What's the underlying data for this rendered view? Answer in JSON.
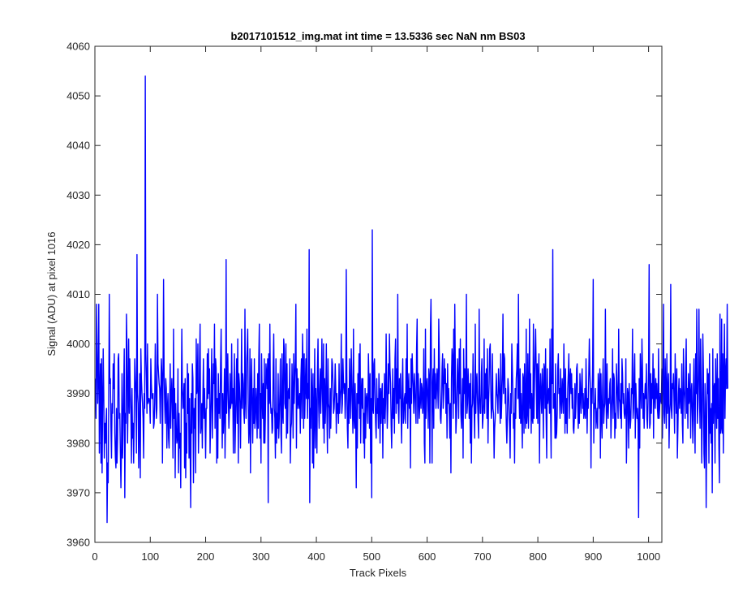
{
  "chart_data": {
    "type": "line",
    "title": "b2017101512_img.mat int time = 13.5336 sec  NaN nm BS03",
    "xlabel": "Track Pixels",
    "ylabel": "Signal (ADU) at pixel 1016",
    "xlim": [
      0,
      1024
    ],
    "ylim": [
      3960,
      4060
    ],
    "xticks": [
      0,
      100,
      200,
      300,
      400,
      500,
      600,
      700,
      800,
      900,
      1000
    ],
    "yticks": [
      3960,
      3970,
      3980,
      3990,
      4000,
      4010,
      4020,
      4030,
      4040,
      4050,
      4060
    ],
    "grid": false,
    "legend": "none",
    "series": [
      {
        "color": "#0000ff",
        "x_start": 1,
        "x_step": 1,
        "values": [
          3993,
          3985,
          4008,
          3998,
          3988,
          3994,
          4008,
          3978,
          3990,
          3996,
          3976,
          3997,
          3974,
          3988,
          3999,
          3990,
          3977,
          3984,
          3980,
          3984,
          3987,
          3964,
          3976,
          3972,
          3989,
          4010,
          3992,
          3993,
          3983,
          3977,
          3988,
          3986,
          3996,
          3991,
          3998,
          3982,
          3977,
          3975,
          3987,
          3976,
          3981,
          3997,
          3998,
          3985,
          3986,
          3978,
          3971,
          3979,
          3994,
          3977,
          3983,
          3991,
          3999,
          3969,
          3986,
          3984,
          4006,
          3999,
          3980,
          3989,
          4001,
          3986,
          3997,
          3990,
          3986,
          3976,
          3991,
          3981,
          3984,
          3976,
          3985,
          3997,
          3993,
          3990,
          3978,
          4018,
          3990,
          3988,
          3975,
          3984,
          3994,
          3973,
          3999,
          3993,
          3990,
          3988,
          3985,
          3977,
          3990,
          3987,
          4054,
          3998,
          3993,
          3986,
          4000,
          3988,
          3989,
          3989,
          3988,
          3984,
          3997,
          3992,
          3989,
          3989,
          3990,
          3983,
          3984,
          3988,
          4000,
          3992,
          3985,
          3987,
          4010,
          3996,
          3994,
          3992,
          3991,
          3984,
          3990,
          3997,
          3994,
          3976,
          3993,
          4013,
          3994,
          3988,
          3984,
          3993,
          3991,
          3979,
          3987,
          3990,
          3981,
          3979,
          3987,
          3996,
          3983,
          3989,
          3993,
          3988,
          3977,
          4003,
          3985,
          3991,
          3973,
          3988,
          3983,
          3980,
          3981,
          3995,
          3974,
          3986,
          3979,
          3982,
          3971,
          3988,
          4003,
          3991,
          3987,
          3989,
          3992,
          3975,
          3993,
          3973,
          3984,
          3978,
          3996,
          3986,
          3994,
          3977,
          3989,
          3979,
          3967,
          3990,
          3982,
          3996,
          3993,
          3972,
          3987,
          3983,
          3989,
          3974,
          4001,
          3990,
          3991,
          4000,
          3978,
          3985,
          3997,
          4004,
          3982,
          3984,
          3988,
          3979,
          3989,
          3997,
          3985,
          3991,
          3985,
          3977,
          3987,
          3987,
          3998,
          3989,
          3999,
          3990,
          3995,
          3978,
          3984,
          3991,
          3999,
          3981,
          3988,
          3996,
          3992,
          4004,
          3983,
          3997,
          3995,
          3976,
          3989,
          3977,
          3994,
          3986,
          3990,
          3985,
          3996,
          4003,
          3988,
          3979,
          3990,
          3982,
          3986,
          3995,
          3977,
          3985,
          4017,
          3986,
          3992,
          3998,
          3989,
          3983,
          3987,
          3994,
          3987,
          3988,
          4000,
          3988,
          3991,
          3978,
          3991,
          3998,
          3978,
          3984,
          3990,
          3997,
          3984,
          4001,
          3976,
          3994,
          3992,
          3988,
          3979,
          3989,
          4003,
          3987,
          3994,
          3992,
          3986,
          3984,
          4007,
          3989,
          3985,
          3996,
          3999,
          4003,
          3988,
          3980,
          3983,
          3999,
          3974,
          3991,
          3997,
          3987,
          3980,
          3991,
          3984,
          3997,
          3983,
          3985,
          3991,
          3988,
          3981,
          3994,
          3983,
          3997,
          4004,
          3981,
          3990,
          3976,
          3998,
          3990,
          3985,
          3992,
          3980,
          3997,
          3980,
          3986,
          3996,
          3994,
          3991,
          3997,
          3968,
          3998,
          3988,
          4004,
          3989,
          3986,
          3987,
          3982,
          3983,
          3995,
          4002,
          3987,
          3985,
          3977,
          3997,
          3980,
          3986,
          3983,
          3994,
          3981,
          3985,
          3990,
          3997,
          3982,
          3978,
          3998,
          3986,
          3984,
          4001,
          3999,
          3988,
          3987,
          4000,
          3981,
          3996,
          3982,
          3990,
          3991,
          3989,
          3997,
          3976,
          3983,
          3984,
          3996,
          3990,
          3981,
          3998,
          3988,
          3993,
          3997,
          4008,
          3979,
          3995,
          3987,
          3993,
          3988,
          3987,
          3990,
          3982,
          3993,
          3997,
          3985,
          4002,
          3996,
          3983,
          3998,
          3985,
          3991,
          3997,
          3989,
          4003,
          3985,
          3992,
          3989,
          4019,
          3968,
          3987,
          3983,
          3995,
          3990,
          3976,
          3994,
          3975,
          3985,
          3999,
          3979,
          3991,
          3987,
          3978,
          3995,
          4001,
          3988,
          3983,
          3991,
          3995,
          3986,
          3992,
          4001,
          3990,
          3983,
          4000,
          3980,
          3993,
          3984,
          3989,
          4000,
          3986,
          3978,
          3997,
          3988,
          3987,
          3981,
          3991,
          3983,
          3989,
          3997,
          3996,
          3992,
          3986,
          3987,
          3990,
          3996,
          3991,
          3982,
          3990,
          3986,
          3988,
          3984,
          3996,
          3986,
          3989,
          3991,
          4002,
          3986,
          3988,
          3997,
          3992,
          3990,
          3992,
          3985,
          3989,
          4015,
          3994,
          3983,
          3979,
          3991,
          3984,
          3997,
          3991,
          3985,
          3999,
          3993,
          3987,
          3982,
          4003,
          3985,
          3983,
          3992,
          3985,
          3971,
          3990,
          3979,
          3994,
          3988,
          3998,
          3985,
          4000,
          3980,
          3990,
          3993,
          3987,
          3993,
          3980,
          3986,
          3977,
          3991,
          3981,
          3989,
          3990,
          3987,
          3984,
          3998,
          3992,
          3983,
          3994,
          3976,
          3989,
          3969,
          4023,
          3987,
          3986,
          3996,
          3997,
          3989,
          3984,
          3981,
          3993,
          3986,
          3989,
          3983,
          3994,
          3989,
          3980,
          3991,
          3984,
          3990,
          3992,
          3977,
          3989,
          3985,
          3994,
          3984,
          3988,
          4002,
          3992,
          3983,
          3987,
          3996,
          3990,
          4002,
          3995,
          3992,
          3984,
          3979,
          3987,
          3995,
          3985,
          3991,
          3982,
          3997,
          4001,
          3986,
          3995,
          3988,
          4010,
          3987,
          3984,
          3993,
          3989,
          3994,
          3986,
          3980,
          3991,
          3997,
          3984,
          3985,
          3989,
          3990,
          3984,
          3997,
          3988,
          4004,
          3983,
          3990,
          3994,
          3987,
          3991,
          3975,
          3997,
          3988,
          3998,
          3994,
          3991,
          3986,
          3994,
          3991,
          3987,
          3984,
          3999,
          4005,
          3984,
          3994,
          3989,
          3985,
          3989,
          3993,
          3987,
          3992,
          3991,
          3986,
          3988,
          3999,
          3980,
          3976,
          4003,
          3985,
          3991,
          3993,
          3989,
          3983,
          3995,
          3993,
          3976,
          4003,
          4009,
          3993,
          3976,
          3992,
          3995,
          3983,
          3999,
          3989,
          3994,
          3987,
          3990,
          3995,
          3992,
          3987,
          4005,
          3998,
          3991,
          3985,
          3984,
          3988,
          3995,
          3998,
          3987,
          3990,
          3997,
          3992,
          3995,
          3986,
          3992,
          3981,
          3996,
          3988,
          3991,
          3986,
          3981,
          3988,
          3974,
          3993,
          3999,
          3997,
          3985,
          4003,
          3988,
          4008,
          3995,
          3982,
          3985,
          3991,
          3997,
          3992,
          3985,
          3999,
          3990,
          4001,
          3986,
          3983,
          3988,
          3993,
          3977,
          3999,
          3990,
          3995,
          3985,
          3992,
          4010,
          3986,
          3988,
          3995,
          3991,
          3985,
          3992,
          3980,
          3994,
          3976,
          3987,
          3988,
          3998,
          3990,
          3986,
          3981,
          4004,
          3986,
          3992,
          3994,
          3989,
          3985,
          3981,
          4007,
          3990,
          3986,
          3986,
          3994,
          3997,
          3983,
          3985,
          3988,
          4001,
          3986,
          3994,
          3989,
          3995,
          3985,
          3999,
          3980,
          3988,
          3992,
          3999,
          4000,
          3991,
          3985,
          3987,
          3998,
          3987,
          3986,
          3977,
          3983,
          3985,
          3989,
          3994,
          3990,
          3989,
          3986,
          3995,
          3992,
          3989,
          3984,
          3998,
          3985,
          3989,
          3994,
          4006,
          3990,
          3998,
          3997,
          3988,
          3991,
          3984,
          3980,
          3985,
          3993,
          3991,
          3987,
          3983,
          3977,
          3990,
          3986,
          4000,
          3995,
          3990,
          3983,
          3986,
          3976,
          3991,
          3985,
          3993,
          3995,
          4000,
          3989,
          4010,
          3990,
          3985,
          3995,
          3984,
          3990,
          3985,
          3979,
          3994,
          3993,
          3982,
          3996,
          3986,
          3983,
          4003,
          3984,
          3986,
          3998,
          3983,
          3989,
          4005,
          3987,
          3994,
          3982,
          3990,
          3985,
          3984,
          4004,
          3985,
          3992,
          3998,
          4003,
          3995,
          3985,
          3996,
          3984,
          3994,
          3998,
          3976,
          3990,
          3994,
          3989,
          3986,
          3995,
          3990,
          3981,
          3996,
          3995,
          3987,
          3999,
          3985,
          3977,
          3995,
          3988,
          3990,
          3991,
          3986,
          4001,
          3987,
          3977,
          4003,
          3992,
          4019,
          3987,
          3988,
          3990,
          3981,
          3996,
          3981,
          3982,
          3986,
          3995,
          3998,
          3990,
          3991,
          3985,
          3995,
          3989,
          3986,
          3993,
          3990,
          3986,
          4000,
          3992,
          3982,
          3995,
          3984,
          3989,
          3982,
          3991,
          3994,
          3998,
          3985,
          3993,
          3995,
          3990,
          3994,
          3987,
          3991,
          3983,
          3982,
          3985,
          3992,
          3985,
          3989,
          3995,
          3996,
          3988,
          3983,
          3990,
          3984,
          3994,
          3990,
          3986,
          3992,
          3995,
          3987,
          3990,
          3985,
          3986,
          3991,
          3985,
          3997,
          3990,
          3982,
          3989,
          3987,
          3994,
          4001,
          3994,
          3991,
          3975,
          3991,
          3988,
          3996,
          4013,
          3980,
          3988,
          3987,
          3991,
          3983,
          3985,
          3987,
          3983,
          3994,
          3991,
          3987,
          3995,
          3977,
          3994,
          3986,
          3981,
          3991,
          3997,
          3984,
          3987,
          3988,
          4007,
          3990,
          3983,
          3996,
          3987,
          3985,
          3989,
          3988,
          3992,
          3993,
          3981,
          3986,
          3990,
          3999,
          3985,
          3994,
          3993,
          3981,
          3986,
          3983,
          3996,
          3992,
          3989,
          3985,
          4003,
          3989,
          3988,
          3985,
          3992,
          3983,
          3997,
          3994,
          3988,
          3990,
          3986,
          3985,
          3987,
          3997,
          3976,
          3984,
          3991,
          3990,
          3979,
          3992,
          3987,
          3983,
          3985,
          3991,
          3990,
          4003,
          3985,
          3987,
          3994,
          3998,
          3981,
          3992,
          3988,
          3985,
          3987,
          3984,
          3965,
          3993,
          3979,
          3998,
          3992,
          3987,
          4001,
          3995,
          3985,
          3990,
          3983,
          3989,
          3992,
          3989,
          3996,
          3985,
          3983,
          3988,
          3995,
          4016,
          3983,
          3984,
          3994,
          3986,
          3992,
          3989,
          3998,
          3981,
          3995,
          3990,
          3987,
          3993,
          3989,
          3992,
          3987,
          3985,
          3999,
          3985,
          3987,
          3990,
          3989,
          3988,
          3995,
          3981,
          3993,
          4008,
          3986,
          3984,
          3997,
          3990,
          3983,
          3998,
          3986,
          3990,
          3994,
          3979,
          3986,
          3988,
          4012,
          3987,
          3985,
          3992,
          3991,
          3994,
          3988,
          3982,
          3998,
          3991,
          3986,
          3995,
          3977,
          3983,
          3990,
          3993,
          3987,
          3991,
          3990,
          3986,
          3996,
          3984,
          3980,
          3999,
          3991,
          3989,
          3985,
          3995,
          4001,
          3986,
          3991,
          3983,
          3994,
          3988,
          3989,
          3996,
          3981,
          3990,
          3992,
          3986,
          3980,
          3991,
          3997,
          3985,
          3978,
          3998,
          3990,
          4007,
          3984,
          3987,
          3995,
          4007,
          3989,
          3983,
          4001,
          3990,
          3976,
          3986,
          4002,
          3995,
          3978,
          3975,
          3992,
          3988,
          3967,
          3983,
          3995,
          3990,
          3994,
          3976,
          3998,
          3982,
          3987,
          3980,
          3988,
          3970,
          3999,
          3984,
          3991,
          3992,
          3976,
          3997,
          3990,
          3983,
          3998,
          3985,
          3993,
          3979,
          3972,
          4006,
          3982,
          3983,
          4005,
          3982,
          3998,
          3978,
          3994,
          4004,
          3985,
          3994,
          3997,
          3991,
          4008,
          3991
        ]
      }
    ]
  }
}
